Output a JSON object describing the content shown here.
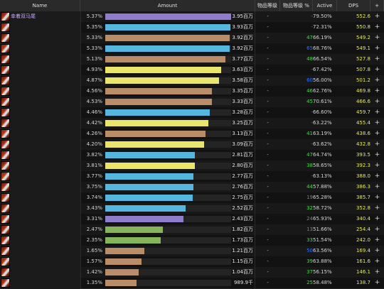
{
  "columns": [
    {
      "label": "Name"
    },
    {
      "label": "Amount"
    },
    {
      "label": "物品等级"
    },
    {
      "label": "物品等级 %"
    },
    {
      "label": "Active"
    },
    {
      "label": "DPS"
    },
    {
      "label": "+"
    }
  ],
  "colors": {
    "purple": "#8f7ccd",
    "blue": "#55b7df",
    "tan": "#b98d67",
    "yellow": "#eae66c",
    "green": "#86b45b",
    "dps_color": "#e3e86b",
    "ilvl_green": "#49d84d",
    "ilvl_blue": "#2f74ff",
    "ilvl_gray": "#7e7e7e"
  },
  "rows": [
    {
      "name": "幸着双马尾",
      "pct": "5.37%",
      "bar_color": "purple",
      "fill": 1.0,
      "amount": "3.95百万",
      "ilvl": "-",
      "ilvl_pct": "-",
      "ilvl_color": "ilvl_gray",
      "active": "79.50%",
      "dps": "552.6",
      "plus": "+"
    },
    {
      "name": "",
      "pct": "5.35%",
      "bar_color": "blue",
      "fill": 0.995,
      "amount": "3.93百万",
      "ilvl": "-",
      "ilvl_pct": "-",
      "ilvl_color": "ilvl_gray",
      "active": "72.31%",
      "dps": "550.8",
      "plus": "+"
    },
    {
      "name": "",
      "pct": "5.33%",
      "bar_color": "tan",
      "fill": 0.99,
      "amount": "3.92百万",
      "ilvl": "-",
      "ilvl_pct": "47",
      "ilvl_color": "ilvl_green",
      "active": "66.19%",
      "dps": "549.2",
      "plus": "+"
    },
    {
      "name": "",
      "pct": "5.33%",
      "bar_color": "blue",
      "fill": 0.99,
      "amount": "3.92百万",
      "ilvl": "-",
      "ilvl_pct": "65",
      "ilvl_color": "ilvl_blue",
      "active": "68.76%",
      "dps": "549.1",
      "plus": "+"
    },
    {
      "name": "",
      "pct": "5.13%",
      "bar_color": "tan",
      "fill": 0.955,
      "amount": "3.77百万",
      "ilvl": "-",
      "ilvl_pct": "48",
      "ilvl_color": "ilvl_green",
      "active": "66.54%",
      "dps": "527.8",
      "plus": "+"
    },
    {
      "name": "",
      "pct": "4.93%",
      "bar_color": "yellow",
      "fill": 0.92,
      "amount": "3.63百万",
      "ilvl": "-",
      "ilvl_pct": "-",
      "ilvl_color": "ilvl_gray",
      "active": "67.42%",
      "dps": "507.8",
      "plus": "+"
    },
    {
      "name": "",
      "pct": "4.87%",
      "bar_color": "yellow",
      "fill": 0.905,
      "amount": "3.58百万",
      "ilvl": "-",
      "ilvl_pct": "60",
      "ilvl_color": "ilvl_blue",
      "active": "56.00%",
      "dps": "501.2",
      "plus": "+"
    },
    {
      "name": "",
      "pct": "4.56%",
      "bar_color": "tan",
      "fill": 0.85,
      "amount": "3.35百万",
      "ilvl": "-",
      "ilvl_pct": "46",
      "ilvl_color": "ilvl_green",
      "active": "62.76%",
      "dps": "469.8",
      "plus": "+"
    },
    {
      "name": "",
      "pct": "4.53%",
      "bar_color": "tan",
      "fill": 0.845,
      "amount": "3.33百万",
      "ilvl": "-",
      "ilvl_pct": "45",
      "ilvl_color": "ilvl_green",
      "active": "70.61%",
      "dps": "466.6",
      "plus": "+"
    },
    {
      "name": "",
      "pct": "4.46%",
      "bar_color": "blue",
      "fill": 0.83,
      "amount": "3.28百万",
      "ilvl": "-",
      "ilvl_pct": "-",
      "ilvl_color": "ilvl_gray",
      "active": "66.60%",
      "dps": "459.7",
      "plus": "+"
    },
    {
      "name": "",
      "pct": "4.42%",
      "bar_color": "yellow",
      "fill": 0.82,
      "amount": "3.25百万",
      "ilvl": "-",
      "ilvl_pct": "-",
      "ilvl_color": "ilvl_gray",
      "active": "63.22%",
      "dps": "455.4",
      "plus": "+"
    },
    {
      "name": "",
      "pct": "4.26%",
      "bar_color": "tan",
      "fill": 0.795,
      "amount": "3.13百万",
      "ilvl": "-",
      "ilvl_pct": "41",
      "ilvl_color": "ilvl_green",
      "active": "63.19%",
      "dps": "438.6",
      "plus": "+"
    },
    {
      "name": "",
      "pct": "4.20%",
      "bar_color": "yellow",
      "fill": 0.785,
      "amount": "3.09百万",
      "ilvl": "-",
      "ilvl_pct": "-",
      "ilvl_color": "ilvl_gray",
      "active": "63.62%",
      "dps": "432.8",
      "plus": "+"
    },
    {
      "name": "",
      "pct": "3.82%",
      "bar_color": "blue",
      "fill": 0.71,
      "amount": "2.81百万",
      "ilvl": "-",
      "ilvl_pct": "47",
      "ilvl_color": "ilvl_green",
      "active": "64.74%",
      "dps": "393.5",
      "plus": "+"
    },
    {
      "name": "",
      "pct": "3.81%",
      "bar_color": "yellow",
      "fill": 0.71,
      "amount": "2.80百万",
      "ilvl": "-",
      "ilvl_pct": "38",
      "ilvl_color": "ilvl_green",
      "active": "58.65%",
      "dps": "392.3",
      "plus": "+"
    },
    {
      "name": "",
      "pct": "3.77%",
      "bar_color": "blue",
      "fill": 0.7,
      "amount": "2.77百万",
      "ilvl": "-",
      "ilvl_pct": "-",
      "ilvl_color": "ilvl_gray",
      "active": "63.13%",
      "dps": "388.0",
      "plus": "+"
    },
    {
      "name": "",
      "pct": "3.75%",
      "bar_color": "blue",
      "fill": 0.7,
      "amount": "2.76百万",
      "ilvl": "-",
      "ilvl_pct": "44",
      "ilvl_color": "ilvl_green",
      "active": "57.88%",
      "dps": "386.3",
      "plus": "+"
    },
    {
      "name": "",
      "pct": "3.74%",
      "bar_color": "blue",
      "fill": 0.695,
      "amount": "2.75百万",
      "ilvl": "-",
      "ilvl_pct": "19",
      "ilvl_color": "ilvl_gray",
      "active": "65.28%",
      "dps": "385.7",
      "plus": "+"
    },
    {
      "name": "",
      "pct": "3.43%",
      "bar_color": "blue",
      "fill": 0.64,
      "amount": "2.52百万",
      "ilvl": "-",
      "ilvl_pct": "32",
      "ilvl_color": "ilvl_green",
      "active": "58.72%",
      "dps": "352.8",
      "plus": "+"
    },
    {
      "name": "",
      "pct": "3.31%",
      "bar_color": "purple",
      "fill": 0.62,
      "amount": "2.43百万",
      "ilvl": "-",
      "ilvl_pct": "24",
      "ilvl_color": "ilvl_gray",
      "active": "65.93%",
      "dps": "340.4",
      "plus": "+"
    },
    {
      "name": "",
      "pct": "2.47%",
      "bar_color": "green",
      "fill": 0.46,
      "amount": "1.82百万",
      "ilvl": "-",
      "ilvl_pct": "13",
      "ilvl_color": "ilvl_gray",
      "active": "51.66%",
      "dps": "254.4",
      "plus": "+"
    },
    {
      "name": "",
      "pct": "2.35%",
      "bar_color": "green",
      "fill": 0.44,
      "amount": "1.73百万",
      "ilvl": "-",
      "ilvl_pct": "33",
      "ilvl_color": "ilvl_green",
      "active": "51.54%",
      "dps": "242.0",
      "plus": "+"
    },
    {
      "name": "",
      "pct": "1.65%",
      "bar_color": "tan",
      "fill": 0.31,
      "amount": "1.21百万",
      "ilvl": "-",
      "ilvl_pct": "50",
      "ilvl_color": "ilvl_blue",
      "active": "63.56%",
      "dps": "169.4",
      "plus": "+"
    },
    {
      "name": "",
      "pct": "1.57%",
      "bar_color": "tan",
      "fill": 0.29,
      "amount": "1.15百万",
      "ilvl": "-",
      "ilvl_pct": "39",
      "ilvl_color": "ilvl_green",
      "active": "63.88%",
      "dps": "161.6",
      "plus": "+"
    },
    {
      "name": "",
      "pct": "1.42%",
      "bar_color": "tan",
      "fill": 0.265,
      "amount": "1.04百万",
      "ilvl": "-",
      "ilvl_pct": "37",
      "ilvl_color": "ilvl_green",
      "active": "56.15%",
      "dps": "146.1",
      "plus": "+"
    },
    {
      "name": "",
      "pct": "1.35%",
      "bar_color": "tan",
      "fill": 0.25,
      "amount": "989.9千",
      "ilvl": "-",
      "ilvl_pct": "25",
      "ilvl_color": "ilvl_green",
      "active": "58.48%",
      "dps": "138.7",
      "plus": "+"
    }
  ]
}
